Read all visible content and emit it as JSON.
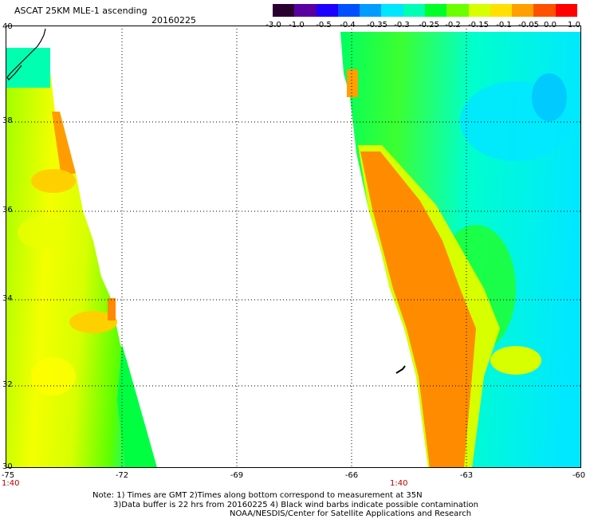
{
  "title": "ASCAT 25KM MLE-1 ascending",
  "date": "20160225",
  "colorbar": {
    "labels": [
      "-3.0",
      "-1.0",
      "-0.5",
      "-0.4",
      "-0.35",
      "-0.3",
      "-0.25",
      "-0.2",
      "-0.15",
      "-0.1",
      "-0.05",
      "0.0",
      "1.0"
    ],
    "colors": [
      "#2a0030",
      "#5a00a0",
      "#1e00ff",
      "#0050ff",
      "#009cff",
      "#00e6ff",
      "#00ffb4",
      "#00ff28",
      "#6cff00",
      "#d8ff00",
      "#ffe000",
      "#ffa000",
      "#ff5000",
      "#ff0000"
    ]
  },
  "axes": {
    "y_ticks": [
      "40",
      "38",
      "36",
      "34",
      "32",
      "30"
    ],
    "x_ticks": [
      "-75",
      "-72",
      "-69",
      "-66",
      "-63",
      "-60"
    ]
  },
  "time_labels": [
    "1:40",
    "1:40"
  ],
  "notes": [
    "Note: 1) Times are GMT 2)Times along bottom correspond to measurement at 35N",
    "3)Data buffer is 22 hrs from 20160225 4) Black wind barbs indicate possible contamination",
    "NOAA/NESDIS/Center for Satellite Applications and Research"
  ]
}
